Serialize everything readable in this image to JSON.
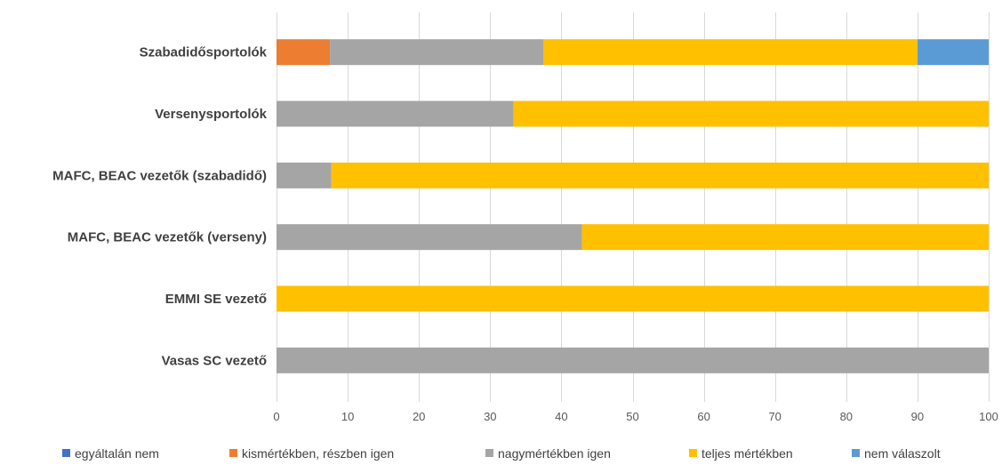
{
  "chart_data": {
    "type": "bar",
    "orientation": "horizontal",
    "stacked": true,
    "categories": [
      "Szabadidősportolók",
      "Versenysportolók",
      "MAFC, BEAC vezetők (szabadidő)",
      "MAFC, BEAC vezetők (verseny)",
      "EMMI SE vezető",
      "Vasas SC vezető"
    ],
    "series": [
      {
        "name": "egyáltalán nem",
        "color": "#4472c4",
        "values": [
          0,
          0,
          0,
          0,
          0,
          0
        ]
      },
      {
        "name": "kismértékben, részben igen",
        "color": "#ed7d31",
        "values": [
          7.5,
          0,
          0,
          0,
          0,
          0
        ]
      },
      {
        "name": "nagymértékben igen",
        "color": "#a5a5a5",
        "values": [
          30,
          33.3,
          7.7,
          42.9,
          0,
          100
        ]
      },
      {
        "name": "teljes mértékben",
        "color": "#ffc000",
        "values": [
          52.5,
          66.7,
          92.3,
          57.1,
          100,
          0
        ]
      },
      {
        "name": "nem válaszolt",
        "color": "#5b9bd5",
        "values": [
          10,
          0,
          0,
          0,
          0,
          0
        ]
      }
    ],
    "xlim": [
      0,
      100
    ],
    "xticks": [
      0,
      10,
      20,
      30,
      40,
      50,
      60,
      70,
      80,
      90,
      100
    ],
    "title": "",
    "xlabel": "",
    "ylabel": "",
    "grid": true,
    "legend_position": "bottom"
  }
}
